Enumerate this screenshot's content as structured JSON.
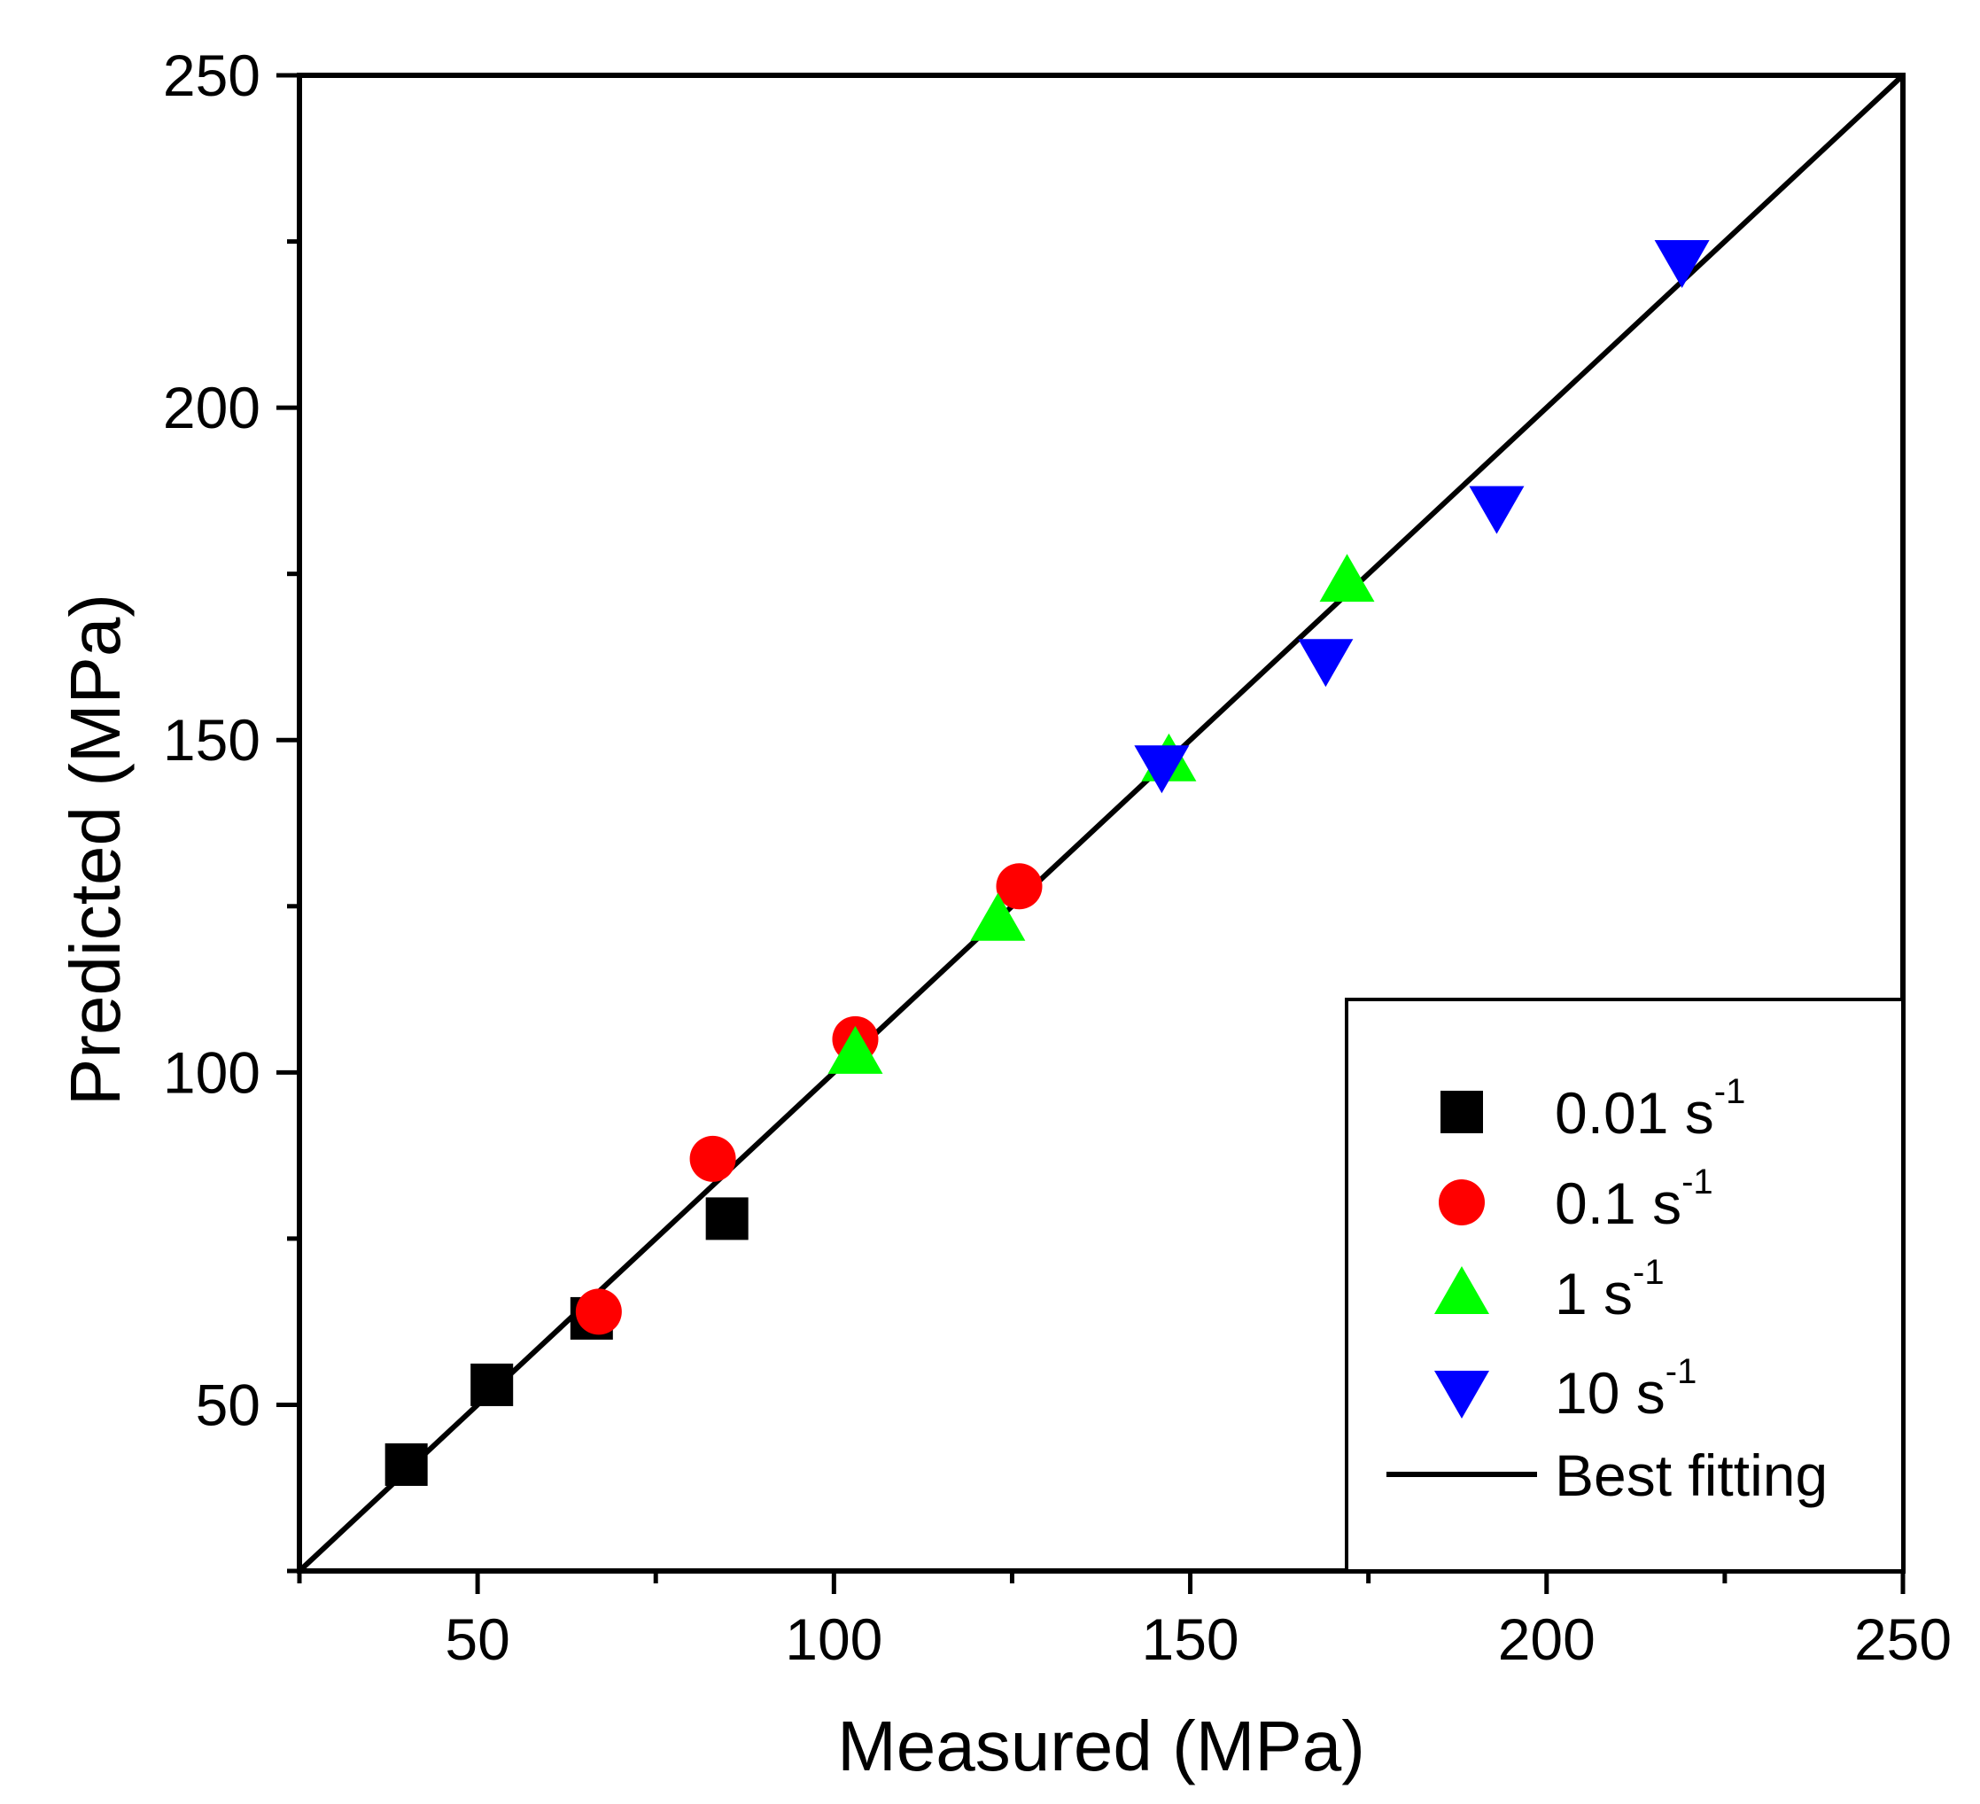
{
  "chart_data": {
    "type": "scatter",
    "title": "",
    "xlabel": "Measured (MPa)",
    "ylabel": "Predicted (MPa)",
    "xlim": [
      25,
      250
    ],
    "ylim": [
      25,
      250
    ],
    "xticks": [
      50,
      100,
      150,
      200,
      250
    ],
    "yticks": [
      50,
      100,
      150,
      200,
      250
    ],
    "minor_step": 25,
    "grid": false,
    "legend_position": "bottom-right",
    "series": [
      {
        "name": "0.01 s",
        "unit_exponent": "-1",
        "marker": "square",
        "color": "#000000",
        "points": [
          [
            40,
            41
          ],
          [
            52,
            53
          ],
          [
            66,
            63
          ],
          [
            85,
            78
          ]
        ]
      },
      {
        "name": "0.1 s",
        "unit_exponent": "-1",
        "marker": "circle",
        "color": "#ff0000",
        "points": [
          [
            67,
            64
          ],
          [
            83,
            87
          ],
          [
            103,
            105
          ],
          [
            126,
            128
          ]
        ]
      },
      {
        "name": "1 s",
        "unit_exponent": "-1",
        "marker": "triangle-up",
        "color": "#00ff00",
        "points": [
          [
            103,
            103
          ],
          [
            123,
            123
          ],
          [
            147,
            147
          ],
          [
            172,
            174
          ]
        ]
      },
      {
        "name": "10 s",
        "unit_exponent": "-1",
        "marker": "triangle-down",
        "color": "#0000ff",
        "points": [
          [
            146,
            146
          ],
          [
            169,
            162
          ],
          [
            193,
            185
          ],
          [
            219,
            222
          ]
        ]
      }
    ],
    "fit_line": {
      "name": "Best fitting",
      "color": "#000000",
      "points": [
        [
          25,
          25
        ],
        [
          250,
          250
        ]
      ]
    }
  }
}
